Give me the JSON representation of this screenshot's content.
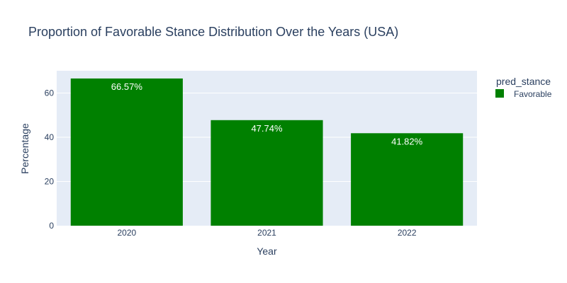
{
  "chart_data": {
    "type": "bar",
    "title": "Proportion of Favorable Stance Distribution Over the Years (USA)",
    "xlabel": "Year",
    "ylabel": "Percentage",
    "categories": [
      "2020",
      "2021",
      "2022"
    ],
    "series": [
      {
        "name": "Favorable",
        "values": [
          66.57,
          47.74,
          41.82
        ],
        "value_labels": [
          "66.57%",
          "47.74%",
          "41.82%"
        ],
        "color": "#008000"
      }
    ],
    "ylim": [
      0,
      70.07
    ],
    "yticks": [
      0,
      20,
      40,
      60
    ],
    "grid": true,
    "legend": {
      "title": "pred_stance",
      "placement": "right"
    },
    "plot_background": "#e5ecf6"
  }
}
